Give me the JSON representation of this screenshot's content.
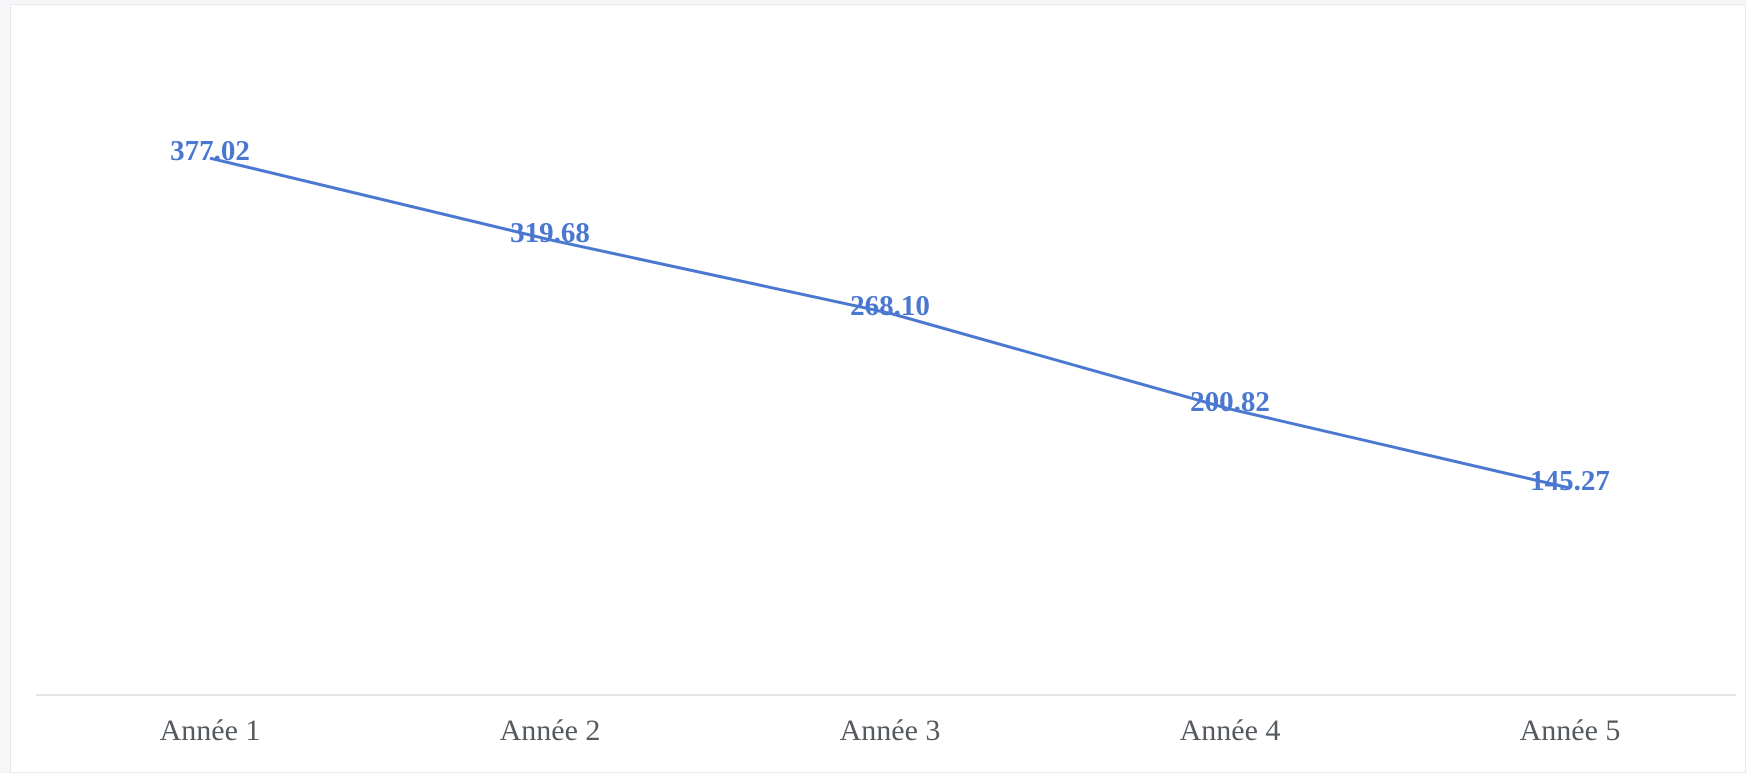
{
  "chart_data": {
    "type": "line",
    "categories": [
      "Année 1",
      "Année 2",
      "Année 3",
      "Année 4",
      "Année 5"
    ],
    "series": [
      {
        "values": [
          377.02,
          319.68,
          268.1,
          200.82,
          145.27
        ],
        "labels": [
          "377.02",
          "319.68",
          "268.10",
          "200.82",
          "145.27"
        ],
        "color": "#4a78d0"
      }
    ],
    "title": "",
    "xlabel": "",
    "ylabel": "",
    "ylim": [
      0,
      460
    ],
    "grid": false,
    "legend": "none",
    "axis_color": "#e3e5e8",
    "tick_color": "#555a60"
  }
}
